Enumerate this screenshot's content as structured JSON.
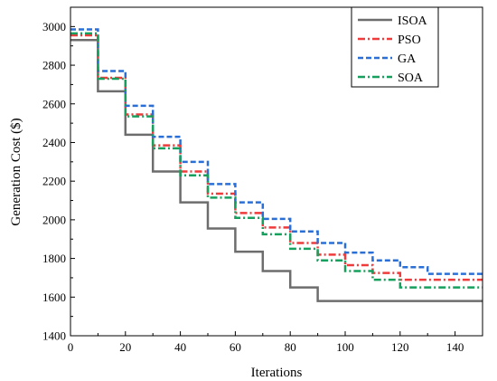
{
  "chart_data": {
    "type": "line",
    "step": true,
    "xlabel": "Iterations",
    "ylabel": "Generation Cost ($)",
    "xlim": [
      0,
      150
    ],
    "ylim": [
      1400,
      3100
    ],
    "xticks": [
      0,
      20,
      40,
      60,
      80,
      100,
      120,
      140
    ],
    "yticks": [
      1400,
      1600,
      1800,
      2000,
      2200,
      2400,
      2600,
      2800,
      3000
    ],
    "grid": false,
    "legend_position": "top-right",
    "series": [
      {
        "name": "ISOA",
        "color": "#6d6d6d",
        "dash": "solid",
        "x": [
          0,
          10,
          20,
          30,
          40,
          50,
          60,
          70,
          80,
          90,
          150
        ],
        "y": [
          2930,
          2665,
          2440,
          2250,
          2090,
          1955,
          1835,
          1735,
          1650,
          1580,
          1580
        ]
      },
      {
        "name": "PSO",
        "color": "#ee3b3b",
        "dash": "dash-dot",
        "x": [
          0,
          10,
          20,
          30,
          40,
          50,
          60,
          70,
          80,
          90,
          100,
          110,
          120,
          150
        ],
        "y": [
          2955,
          2735,
          2545,
          2385,
          2250,
          2135,
          2035,
          1960,
          1880,
          1820,
          1765,
          1725,
          1690,
          1690
        ]
      },
      {
        "name": "GA",
        "color": "#2a6fd6",
        "dash": "dashed",
        "x": [
          0,
          10,
          20,
          30,
          40,
          50,
          60,
          70,
          80,
          90,
          100,
          110,
          120,
          130,
          150
        ],
        "y": [
          2985,
          2770,
          2590,
          2430,
          2300,
          2185,
          2090,
          2005,
          1940,
          1880,
          1830,
          1790,
          1755,
          1720,
          1720
        ]
      },
      {
        "name": "SOA",
        "color": "#17a05d",
        "dash": "dash-dot",
        "x": [
          0,
          10,
          20,
          30,
          40,
          50,
          60,
          70,
          80,
          90,
          100,
          110,
          120,
          150
        ],
        "y": [
          2965,
          2730,
          2535,
          2370,
          2230,
          2115,
          2010,
          1925,
          1850,
          1790,
          1735,
          1690,
          1650,
          1650
        ]
      }
    ]
  }
}
